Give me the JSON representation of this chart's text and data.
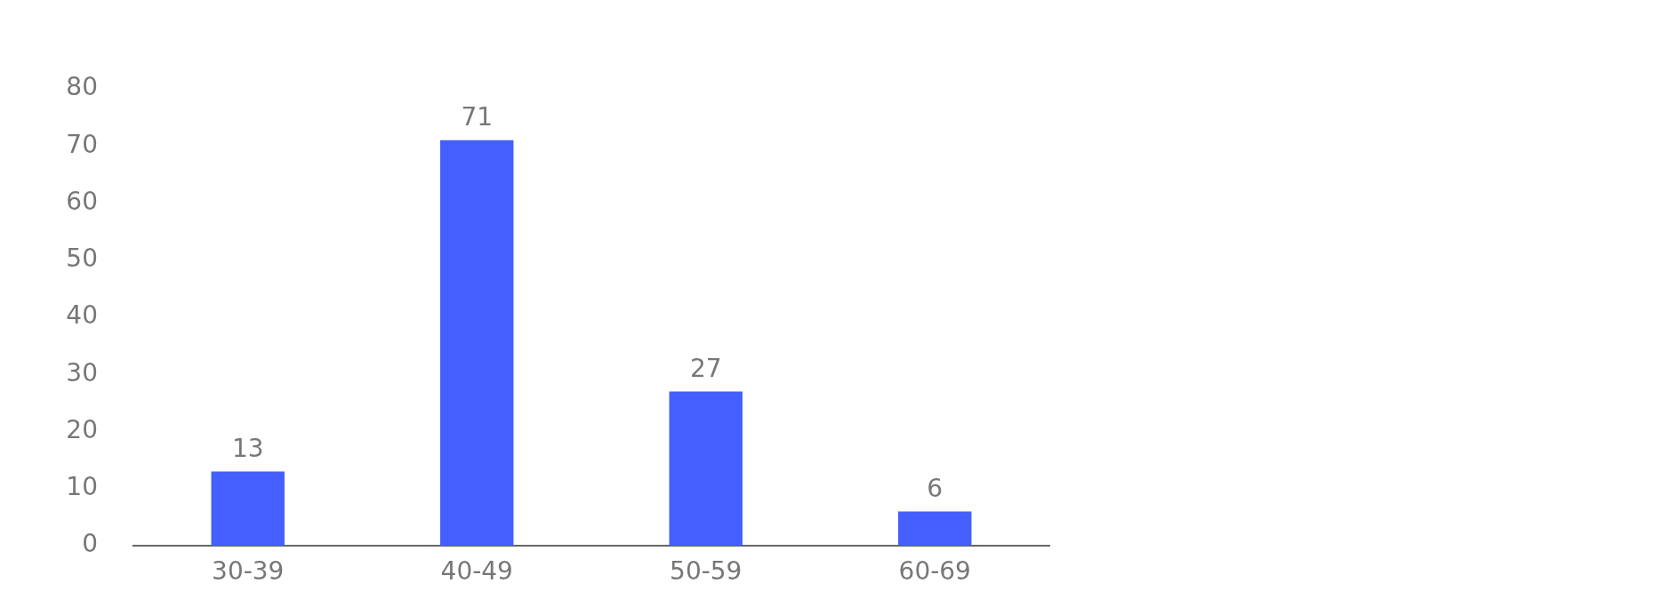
{
  "chart_data": {
    "type": "bar",
    "categories": [
      "30-39",
      "40-49",
      "50-59",
      "60-69"
    ],
    "values": [
      13,
      71,
      27,
      6
    ],
    "color": "#445ffe",
    "ylim": [
      0,
      80
    ],
    "yticks": [
      0,
      10,
      20,
      30,
      40,
      50,
      60,
      70,
      80
    ],
    "grid": false,
    "legend": false,
    "data_labels": true
  }
}
